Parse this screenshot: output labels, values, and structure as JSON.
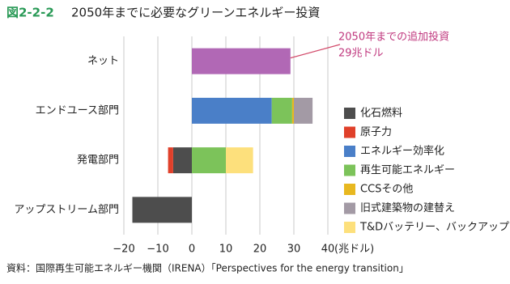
{
  "chart_data": {
    "type": "bar",
    "orientation": "horizontal",
    "stacked": true,
    "figure_number": "図2-2-2",
    "title": "2050年までに必要なグリーンエネルギー投資",
    "categories": [
      "ネット",
      "エンドユース部門",
      "発電部門",
      "アップストリーム部門"
    ],
    "series": [
      {
        "name": "化石燃料",
        "color": "#4d4d4d",
        "values": [
          null,
          null,
          -5.5,
          -17.5
        ]
      },
      {
        "name": "原子力",
        "color": "#e0402a",
        "values": [
          null,
          null,
          -1.5,
          null
        ]
      },
      {
        "name": "エネルギー効率化",
        "color": "#4a7fc8",
        "values": [
          null,
          23.5,
          null,
          null
        ]
      },
      {
        "name": "再生可能エネルギー",
        "color": "#7cc35a",
        "values": [
          null,
          6,
          10,
          null
        ]
      },
      {
        "name": "CCSその他",
        "color": "#e8b820",
        "values": [
          null,
          0.5,
          null,
          null
        ]
      },
      {
        "name": "旧式建築物の建替え",
        "color": "#a39aa5",
        "values": [
          null,
          5.5,
          null,
          null
        ]
      },
      {
        "name": "T&Dバッテリー、バックアップ",
        "color": "#fde07c",
        "values": [
          null,
          null,
          8,
          null
        ]
      },
      {
        "color": "#b168b5",
        "values": [
          29,
          null,
          null,
          null
        ],
        "value_labels": [
          "29兆ドル",
          null,
          null,
          null
        ]
      }
    ],
    "annotation": "2050年までの追加投資",
    "annotation_color": "#c0397f",
    "xlim": [
      -20,
      40
    ],
    "xticks": [
      {
        "value": -20,
        "label": "−20"
      },
      {
        "value": -10,
        "label": "−10"
      },
      0,
      10,
      20,
      30,
      40
    ],
    "x_label": "(兆ドル)",
    "grid": true,
    "source": "資料：国際再生可能エネルギー機関（IRENA）「Perspectives for the energy transition」"
  }
}
